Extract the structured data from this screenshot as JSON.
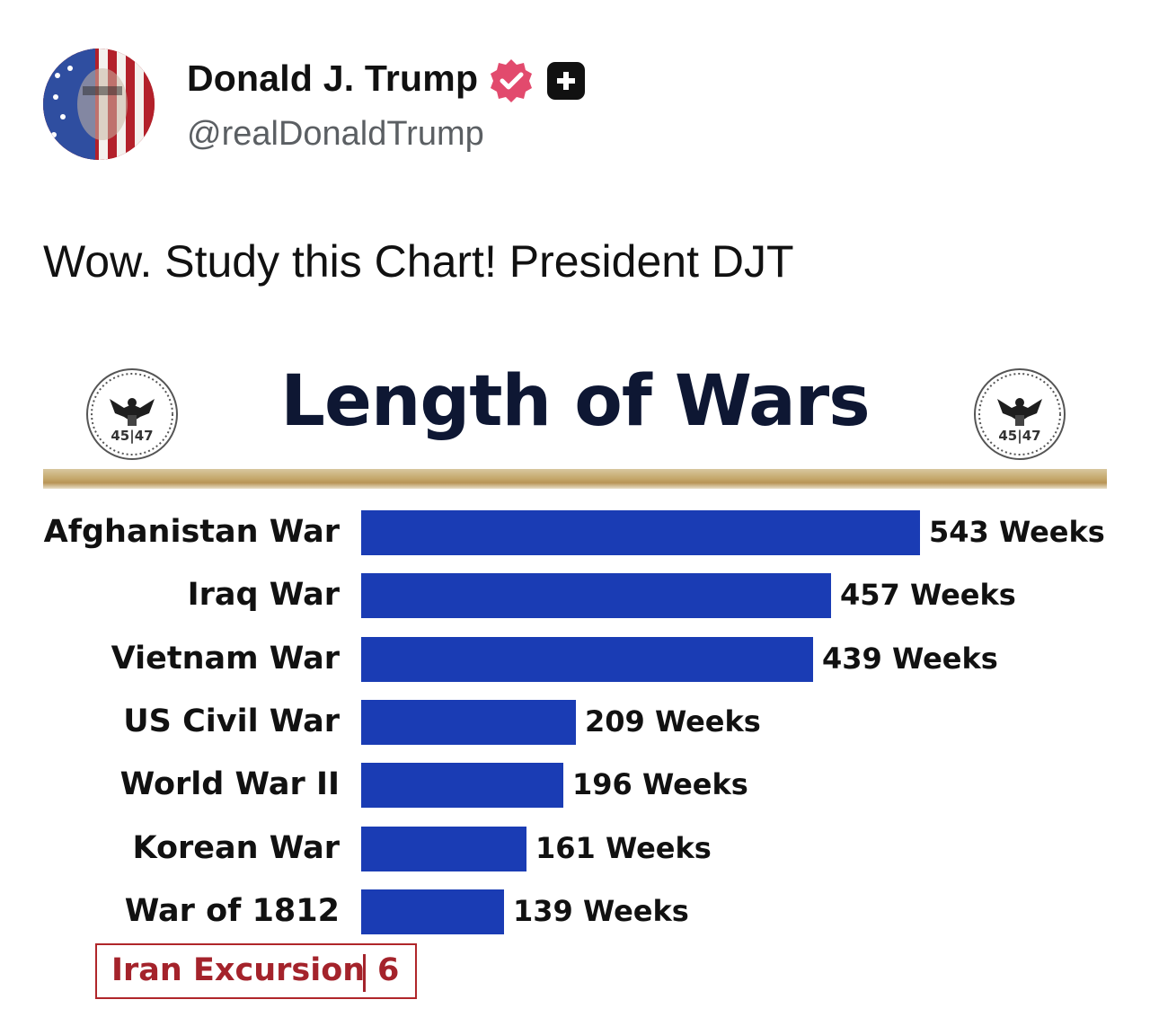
{
  "post": {
    "display_name": "Donald J. Trump",
    "handle": "@realDonaldTrump",
    "text": "Wow. Study this Chart! President DJT",
    "verified_icon": "verified-badge-icon",
    "subscriber_icon": "plus-badge-icon",
    "colors": {
      "verified": "#e24a6d",
      "badge_dark": "#111111"
    }
  },
  "seal": {
    "numbers": "45|47"
  },
  "chart_data": {
    "type": "bar",
    "orientation": "horizontal",
    "title": "Length of Wars",
    "categories": [
      "Afghanistan War",
      "Iraq War",
      "Vietnam War",
      "US Civil War",
      "World War II",
      "Korean War",
      "War of 1812"
    ],
    "values": [
      543,
      457,
      439,
      209,
      196,
      161,
      139
    ],
    "value_labels": [
      "543 Weeks",
      "457 Weeks",
      "439 Weeks",
      "209 Weeks",
      "196 Weeks",
      "161 Weeks",
      "139 Weeks"
    ],
    "unit": "Weeks",
    "bar_color": "#1a3cb4",
    "grid": false,
    "callout": {
      "label": "Iran Excursion",
      "value": "6",
      "color": "#a4232b"
    }
  }
}
